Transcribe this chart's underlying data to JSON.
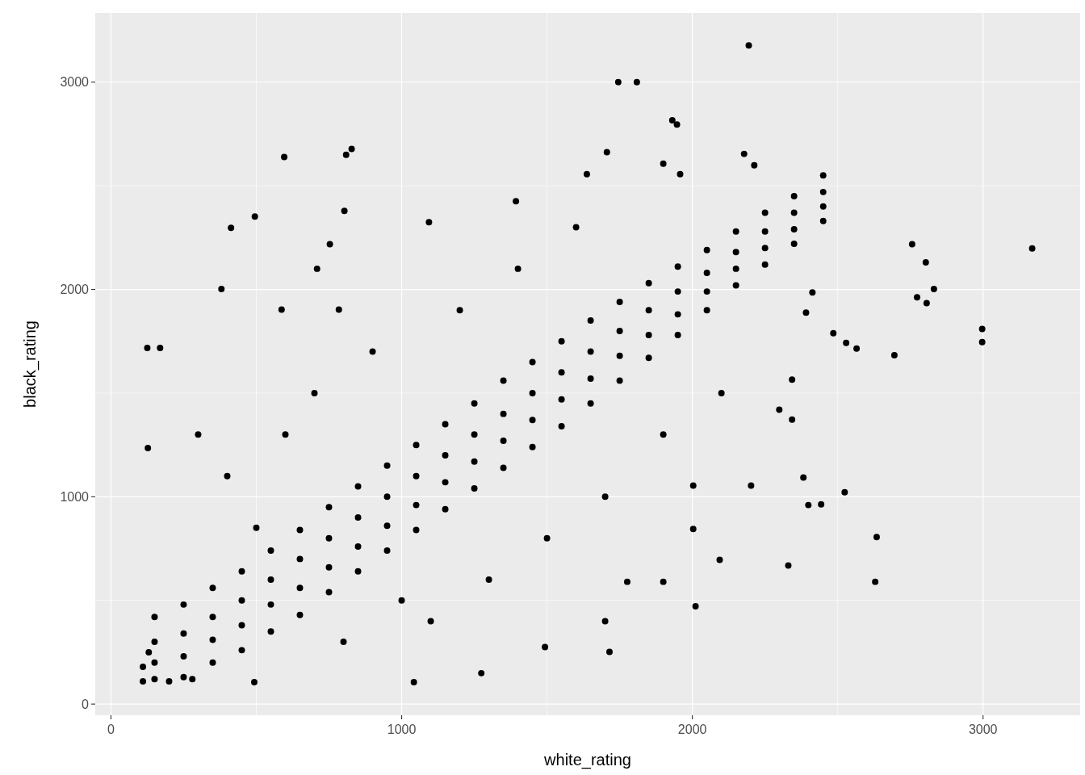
{
  "chart_data": {
    "type": "scatter",
    "xlabel": "white_rating",
    "ylabel": "black_rating",
    "xlim": [
      -54,
      3334
    ],
    "ylim": [
      -54,
      3334
    ],
    "xticks": [
      0,
      1000,
      2000,
      3000
    ],
    "yticks": [
      0,
      1000,
      2000,
      3000
    ],
    "grid": true,
    "marker": "circle",
    "color": "#000000",
    "x": [
      2194,
      1745,
      1809,
      1931,
      1947,
      1706,
      1900,
      596,
      809,
      828,
      495,
      1637,
      1958,
      2178,
      2213,
      3169,
      2997,
      2997,
      2803,
      2773,
      2806,
      2831,
      2756,
      2629,
      2634,
      2330,
      2382,
      2299,
      2343,
      2003,
      2094,
      1715,
      1493,
      1274,
      1042,
      493,
      125,
      169,
      127,
      413,
      753,
      803,
      709,
      1094,
      1393,
      587,
      784,
      380,
      2565,
      2529,
      2695,
      2399,
      2443,
      2003,
      2202,
      2524,
      1776,
      1900,
      2011,
      2485,
      2343,
      2391,
      2413,
      150,
      150,
      150,
      150,
      250,
      250,
      250,
      250,
      350,
      350,
      350,
      350,
      450,
      450,
      450,
      450,
      550,
      550,
      550,
      550,
      650,
      650,
      650,
      650,
      750,
      750,
      750,
      750,
      850,
      850,
      850,
      850,
      950,
      950,
      950,
      950,
      1050,
      1050,
      1050,
      1050,
      1150,
      1150,
      1150,
      1150,
      1250,
      1250,
      1250,
      1250,
      1350,
      1350,
      1350,
      1350,
      1450,
      1450,
      1450,
      1450,
      1550,
      1550,
      1550,
      1550,
      1650,
      1650,
      1650,
      1650,
      1750,
      1750,
      1750,
      1750,
      1850,
      1850,
      1850,
      1850,
      1950,
      1950,
      1950,
      1950,
      2050,
      2050,
      2050,
      2050,
      2150,
      2150,
      2150,
      2150,
      2250,
      2250,
      2250,
      2250,
      2350,
      2350,
      2350,
      2350,
      2450,
      2450,
      2450,
      2450,
      110,
      130,
      200,
      280,
      110,
      600,
      700,
      900,
      1200,
      1400,
      1600,
      1100,
      1300,
      1500,
      1700,
      1900,
      2100,
      400,
      300,
      800,
      1000,
      500,
      1700
    ],
    "values": [
      3177,
      3000,
      3000,
      2816,
      2796,
      2662,
      2607,
      2639,
      2650,
      2678,
      2352,
      2556,
      2556,
      2654,
      2599,
      2198,
      1809,
      1746,
      2131,
      1962,
      1934,
      2002,
      2218,
      590,
      806,
      668,
      1093,
      1420,
      1372,
      845,
      696,
      252,
      275,
      149,
      106,
      106,
      1718,
      1718,
      1235,
      2297,
      2218,
      2379,
      2100,
      2324,
      2426,
      1903,
      1903,
      2002,
      1715,
      1742,
      1683,
      960,
      963,
      1054,
      1054,
      1022,
      590,
      590,
      472,
      1789,
      1565,
      1888,
      1986,
      120,
      200,
      300,
      420,
      130,
      230,
      340,
      480,
      200,
      310,
      420,
      560,
      260,
      380,
      500,
      640,
      350,
      480,
      600,
      740,
      430,
      560,
      700,
      840,
      540,
      660,
      800,
      950,
      640,
      760,
      900,
      1050,
      740,
      860,
      1000,
      1150,
      840,
      960,
      1100,
      1250,
      940,
      1070,
      1200,
      1350,
      1040,
      1170,
      1300,
      1450,
      1140,
      1270,
      1400,
      1560,
      1240,
      1370,
      1500,
      1650,
      1340,
      1470,
      1600,
      1750,
      1450,
      1570,
      1700,
      1850,
      1560,
      1680,
      1800,
      1940,
      1670,
      1780,
      1900,
      2030,
      1780,
      1880,
      1990,
      2110,
      1900,
      1990,
      2080,
      2190,
      2020,
      2100,
      2180,
      2280,
      2120,
      2200,
      2280,
      2370,
      2220,
      2290,
      2370,
      2450,
      2330,
      2400,
      2470,
      2550,
      110,
      250,
      110,
      120,
      180,
      1300,
      1500,
      1700,
      1900,
      2100,
      2300,
      400,
      600,
      800,
      1000,
      1300,
      1500,
      1100,
      1300,
      300,
      500,
      850,
      400
    ]
  }
}
